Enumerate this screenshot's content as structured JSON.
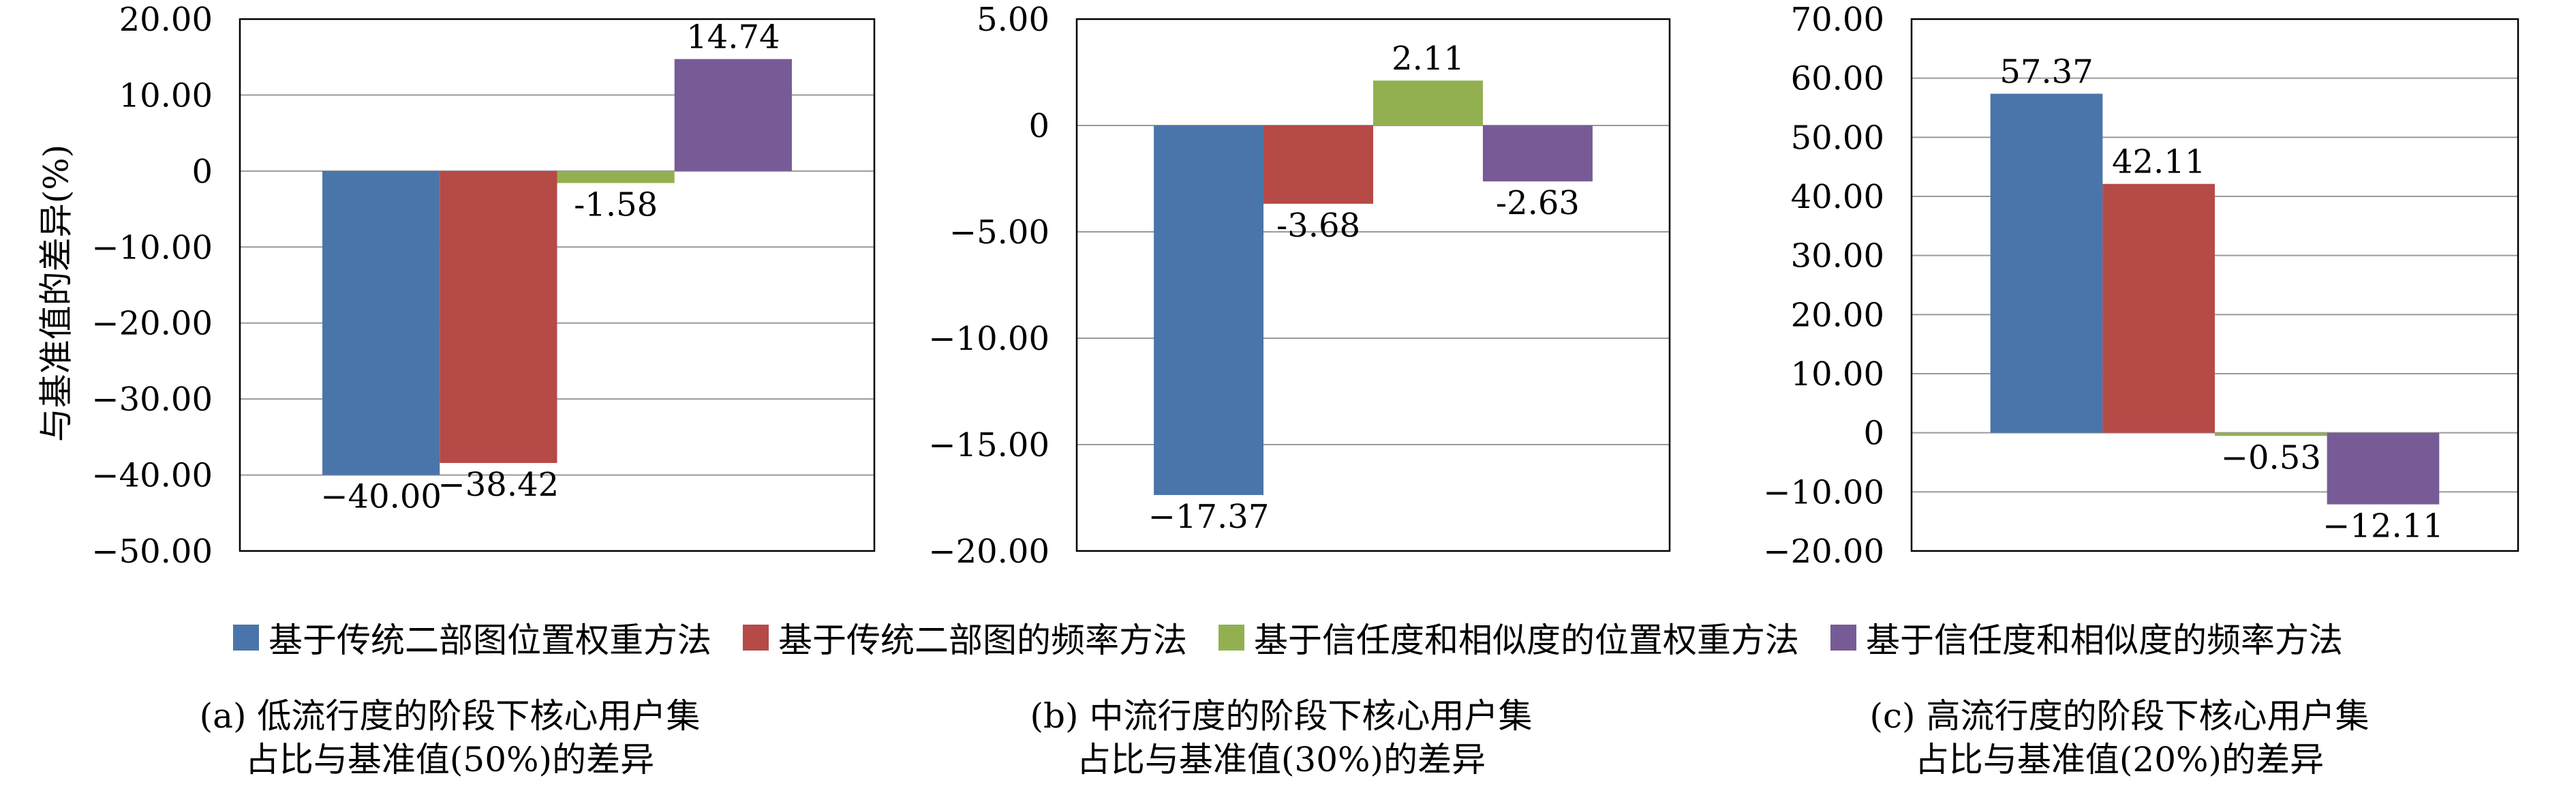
{
  "y_axis_label": "与基准值的差异(%)",
  "colors": [
    "#4a75aa",
    "#b54a47",
    "#93b050",
    "#775b96"
  ],
  "legend": [
    "基于传统二部图位置权重方法",
    "基于传统二部图的频率方法",
    "基于信任度和相似度的位置权重方法",
    "基于信任度和相似度的频率方法"
  ],
  "chart_data": [
    {
      "type": "bar",
      "categories": [
        "基于传统二部图位置权重方法",
        "基于传统二部图的频率方法",
        "基于信任度和相似度的位置权重方法",
        "基于信任度和相似度的频率方法"
      ],
      "values": [
        -40.0,
        -38.42,
        -1.58,
        14.74
      ],
      "value_labels": [
        "−40.00",
        "−38.42",
        "-1.58",
        "14.74"
      ],
      "ylim": [
        -50,
        20
      ],
      "yticks": [
        -50,
        -40,
        -30,
        -20,
        -10,
        0,
        10,
        20
      ],
      "ytick_labels": [
        "−50.00",
        "−40.00",
        "−30.00",
        "−20.00",
        "−10.00",
        "0",
        "10.00",
        "20.00"
      ],
      "ylabel": "与基准值的差异(%)",
      "grid": true,
      "caption": [
        "(a) 低流行度的阶段下核心用户集",
        "占比与基准值(50%)的差异"
      ]
    },
    {
      "type": "bar",
      "categories": [
        "基于传统二部图位置权重方法",
        "基于传统二部图的频率方法",
        "基于信任度和相似度的位置权重方法",
        "基于信任度和相似度的频率方法"
      ],
      "values": [
        -17.37,
        -3.68,
        2.11,
        -2.63
      ],
      "value_labels": [
        "−17.37",
        "-3.68",
        "2.11",
        "-2.63"
      ],
      "ylim": [
        -20,
        5
      ],
      "yticks": [
        -20,
        -15,
        -10,
        -5,
        0,
        5
      ],
      "ytick_labels": [
        "−20.00",
        "−15.00",
        "−10.00",
        "−5.00",
        "0",
        "5.00"
      ],
      "grid": true,
      "caption": [
        "(b) 中流行度的阶段下核心用户集",
        "占比与基准值(30%)的差异"
      ]
    },
    {
      "type": "bar",
      "categories": [
        "基于传统二部图位置权重方法",
        "基于传统二部图的频率方法",
        "基于信任度和相似度的位置权重方法",
        "基于信任度和相似度的频率方法"
      ],
      "values": [
        57.37,
        42.11,
        -0.53,
        -12.11
      ],
      "value_labels": [
        "57.37",
        "42.11",
        "−0.53",
        "−12.11"
      ],
      "ylim": [
        -20,
        70
      ],
      "yticks": [
        -20,
        -10,
        0,
        10,
        20,
        30,
        40,
        50,
        60,
        70
      ],
      "ytick_labels": [
        "−20.00",
        "−10.00",
        "0",
        "10.00",
        "20.00",
        "30.00",
        "40.00",
        "50.00",
        "60.00",
        "70.00"
      ],
      "grid": true,
      "caption": [
        "(c) 高流行度的阶段下核心用户集",
        "占比与基准值(20%)的差异"
      ]
    }
  ]
}
